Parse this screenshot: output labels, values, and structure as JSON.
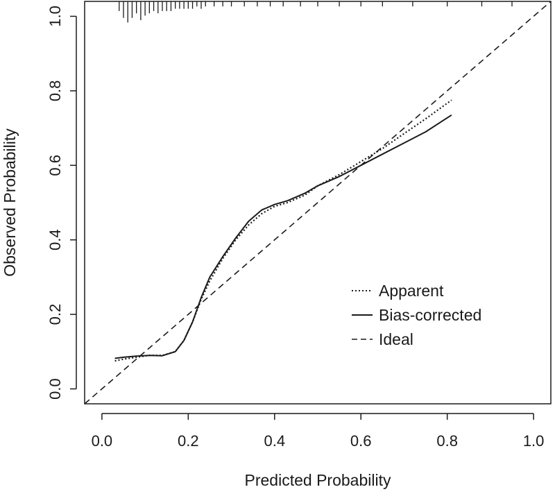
{
  "chart_data": {
    "type": "line",
    "title": "",
    "xlabel": "Predicted Probability",
    "ylabel": "Observed Probability",
    "xlim": [
      -0.04,
      1.04
    ],
    "ylim": [
      -0.04,
      1.04
    ],
    "x_ticks": [
      0.0,
      0.2,
      0.4,
      0.6,
      0.8,
      1.0
    ],
    "x_tick_labels": [
      "0.0",
      "0.2",
      "0.4",
      "0.6",
      "0.8",
      "1.0"
    ],
    "y_ticks": [
      0.0,
      0.2,
      0.4,
      0.6,
      0.8,
      1.0
    ],
    "y_tick_labels": [
      "0.0",
      "0.2",
      "0.4",
      "0.6",
      "0.8",
      "1.0"
    ],
    "grid": false,
    "legend_position": "bottom-right",
    "series": [
      {
        "name": "Apparent",
        "style": "dotted",
        "x": [
          0.03,
          0.05,
          0.08,
          0.11,
          0.14,
          0.17,
          0.19,
          0.21,
          0.23,
          0.25,
          0.28,
          0.31,
          0.34,
          0.37,
          0.4,
          0.43,
          0.47,
          0.5,
          0.55,
          0.6,
          0.65,
          0.7,
          0.75,
          0.81
        ],
        "y": [
          0.075,
          0.08,
          0.085,
          0.09,
          0.09,
          0.1,
          0.13,
          0.18,
          0.24,
          0.29,
          0.35,
          0.4,
          0.44,
          0.47,
          0.49,
          0.5,
          0.52,
          0.545,
          0.575,
          0.61,
          0.645,
          0.685,
          0.725,
          0.775
        ]
      },
      {
        "name": "Bias-corrected",
        "style": "solid",
        "x": [
          0.03,
          0.05,
          0.08,
          0.11,
          0.14,
          0.17,
          0.19,
          0.21,
          0.23,
          0.25,
          0.28,
          0.31,
          0.34,
          0.37,
          0.4,
          0.43,
          0.47,
          0.5,
          0.55,
          0.6,
          0.65,
          0.7,
          0.75,
          0.81
        ],
        "y": [
          0.082,
          0.085,
          0.088,
          0.09,
          0.089,
          0.1,
          0.13,
          0.18,
          0.245,
          0.3,
          0.355,
          0.405,
          0.45,
          0.48,
          0.495,
          0.505,
          0.525,
          0.545,
          0.57,
          0.6,
          0.63,
          0.66,
          0.69,
          0.735
        ]
      },
      {
        "name": "Ideal",
        "style": "dashed",
        "x": [
          -0.04,
          1.04
        ],
        "y": [
          -0.04,
          1.04
        ]
      }
    ],
    "rug": {
      "position": "top",
      "x": [
        0.04,
        0.05,
        0.06,
        0.07,
        0.08,
        0.09,
        0.1,
        0.11,
        0.12,
        0.13,
        0.14,
        0.15,
        0.16,
        0.17,
        0.18,
        0.19,
        0.2,
        0.21,
        0.22,
        0.23,
        0.24,
        0.26,
        0.28,
        0.3,
        0.33,
        0.36,
        0.39,
        0.42,
        0.46,
        0.5,
        0.55,
        0.6,
        0.65,
        0.72,
        0.8,
        0.88,
        0.95
      ],
      "counts": [
        3,
        6,
        8,
        6,
        4,
        7,
        5,
        4,
        3,
        4,
        3,
        3,
        3,
        2,
        2,
        2,
        2,
        2,
        1,
        2,
        1,
        1,
        1,
        1,
        1,
        1,
        1,
        1,
        1,
        1,
        1,
        1,
        1,
        1,
        1,
        1,
        1
      ]
    }
  },
  "legend": {
    "items": [
      {
        "label": "Apparent",
        "style": "dotted"
      },
      {
        "label": "Bias-corrected",
        "style": "solid"
      },
      {
        "label": "Ideal",
        "style": "dashed"
      }
    ]
  },
  "colors": {
    "line": "#1a1a1a",
    "background": "#ffffff"
  }
}
